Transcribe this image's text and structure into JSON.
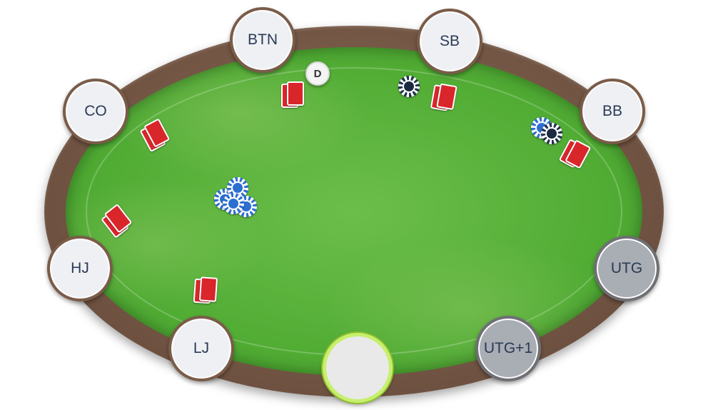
{
  "table": {
    "dealer_label": "D",
    "seats": [
      {
        "position": "BTN",
        "status": "active"
      },
      {
        "position": "SB",
        "status": "active"
      },
      {
        "position": "BB",
        "status": "active"
      },
      {
        "position": "UTG",
        "status": "folded"
      },
      {
        "position": "UTG+1",
        "status": "folded"
      },
      {
        "position": "",
        "status": "hero"
      },
      {
        "position": "LJ",
        "status": "active"
      },
      {
        "position": "HJ",
        "status": "active"
      },
      {
        "position": "CO",
        "status": "active"
      }
    ]
  },
  "colors": {
    "felt": "#52ad35",
    "rail": "#6e5140",
    "card_back": "#d9262b",
    "chip_blue": "#2d6fd1",
    "chip_navy": "#1f3a66",
    "hero_ring": "#c7ef6e"
  }
}
